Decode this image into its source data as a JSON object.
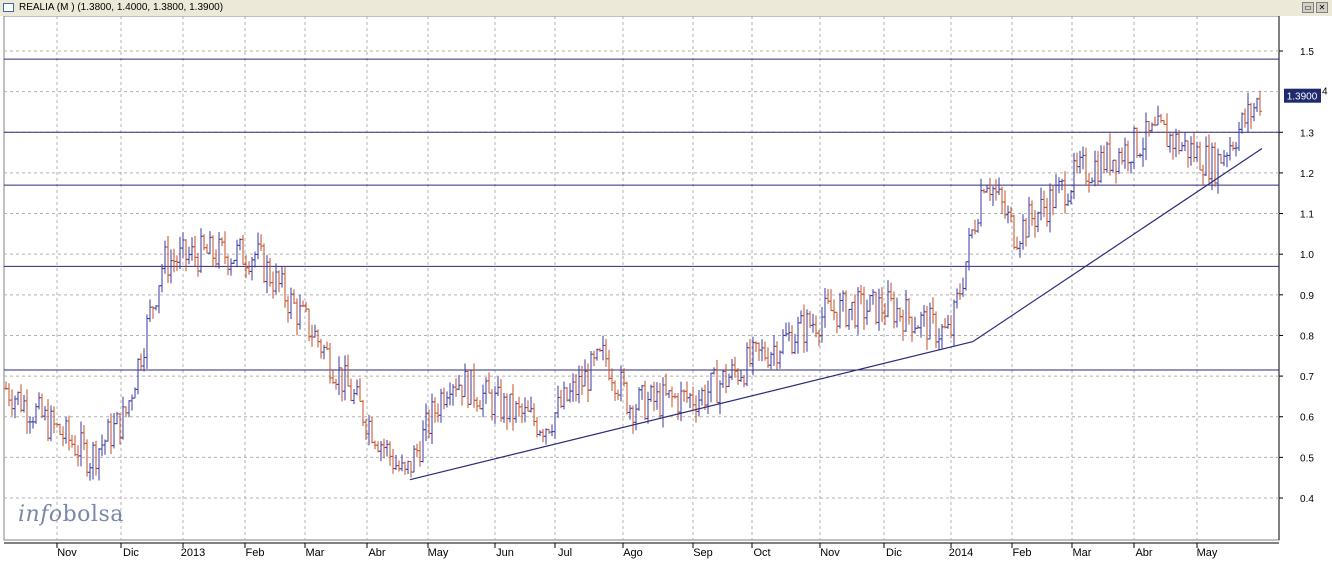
{
  "window": {
    "title": "REALIA (M ) (1.3800, 1.4000, 1.3800, 1.3900)",
    "restore_label": "▭",
    "close_label": "✕"
  },
  "logo": {
    "part1": "info",
    "part2": "bolsa"
  },
  "price_tag": {
    "value": "1.3900",
    "suffix": "4"
  },
  "colors": {
    "up": "#3a3aa0",
    "down": "#c0502a",
    "line": "#2a2a7a",
    "grid": "#b0b0b0"
  },
  "chart_data": {
    "type": "ohlc",
    "ylim": [
      0.3,
      1.56
    ],
    "y_ticks": [
      "0.4",
      "0.5",
      "0.6",
      "0.7",
      "0.8",
      "0.9",
      "1.0",
      "1.1",
      "1.2",
      "1.3",
      "1.5"
    ],
    "x_tick_labels": [
      "Nov",
      "Dic",
      "2013",
      "Feb",
      "Mar",
      "Abr",
      "May",
      "Jun",
      "Jul",
      "Ago",
      "Sep",
      "Oct",
      "Nov",
      "Dic",
      "2014",
      "Feb",
      "Mar",
      "Abr",
      "May"
    ],
    "horizontal_lines": [
      1.48,
      1.3,
      1.17,
      0.97,
      0.715
    ],
    "trendlines": [
      {
        "from": [
          "2013-Abr-end",
          0.445
        ],
        "to": [
          "2014-Ene-start",
          0.785
        ]
      },
      {
        "from": [
          "2014-Ene-start",
          0.785
        ],
        "to": [
          "2014-May-end",
          1.26
        ]
      }
    ],
    "close_path": [
      [
        "Oct-2012",
        0.67
      ],
      [
        "Nov-2012",
        0.5
      ],
      [
        "Dic-2012",
        0.6
      ],
      [
        "Dic-2012-end",
        0.98
      ],
      [
        "Ene-2013",
        1.0
      ],
      [
        "Feb-2013",
        1.0
      ],
      [
        "Mar-2013",
        0.8
      ],
      [
        "Abr-2013",
        0.55
      ],
      [
        "Abr-2013-end",
        0.45
      ],
      [
        "May-2013",
        0.7
      ],
      [
        "Jun-2013",
        0.62
      ],
      [
        "Jul-2013",
        0.58
      ],
      [
        "Jul-2013-end",
        0.75
      ],
      [
        "Ago-2013",
        0.63
      ],
      [
        "Sep-2013",
        0.65
      ],
      [
        "Oct-2013",
        0.75
      ],
      [
        "Nov-2013",
        0.86
      ],
      [
        "Dic-2013",
        0.87
      ],
      [
        "Ene-2014",
        0.8
      ],
      [
        "Ene-2014-mid",
        1.2
      ],
      [
        "Feb-2014",
        1.05
      ],
      [
        "Mar-2014",
        1.2
      ],
      [
        "Abr-2014",
        1.3
      ],
      [
        "May-2014",
        1.22
      ],
      [
        "May-2014-end",
        1.39
      ]
    ],
    "last": {
      "open": 1.38,
      "high": 1.4,
      "low": 1.38,
      "close": 1.39
    }
  }
}
